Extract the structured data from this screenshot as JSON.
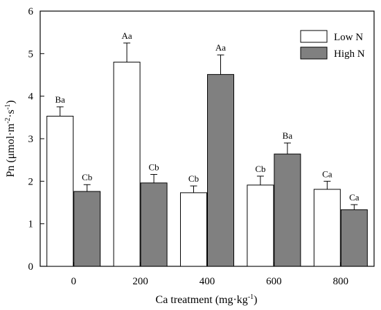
{
  "chart_data": {
    "type": "bar",
    "title": "",
    "xlabel": {
      "base": "Ca treatment (mg·kg",
      "sup": "-1",
      "tail": ")"
    },
    "ylabel": {
      "base": "Pn (μmol·m",
      "sup1": "-2",
      "mid": "·s",
      "sup2": "-1",
      "tail": ")"
    },
    "categories": [
      "0",
      "200",
      "400",
      "600",
      "800"
    ],
    "ylim": [
      0,
      6
    ],
    "yticks": [
      "0",
      "1",
      "2",
      "3",
      "4",
      "5",
      "6"
    ],
    "grid": false,
    "legend_position": "top-right",
    "series": [
      {
        "name": "Low N",
        "color": "#ffffff",
        "values": [
          3.53,
          4.8,
          1.73,
          1.91,
          1.81
        ],
        "errors": [
          0.22,
          0.45,
          0.16,
          0.21,
          0.19
        ],
        "labels": [
          "Ba",
          "Aa",
          "Cb",
          "Cb",
          "Ca"
        ]
      },
      {
        "name": "High N",
        "color": "#808080",
        "values": [
          1.76,
          1.96,
          4.51,
          2.64,
          1.33
        ],
        "errors": [
          0.16,
          0.2,
          0.46,
          0.26,
          0.12
        ],
        "labels": [
          "Cb",
          "Cb",
          "Aa",
          "Ba",
          "Ca"
        ]
      }
    ]
  }
}
